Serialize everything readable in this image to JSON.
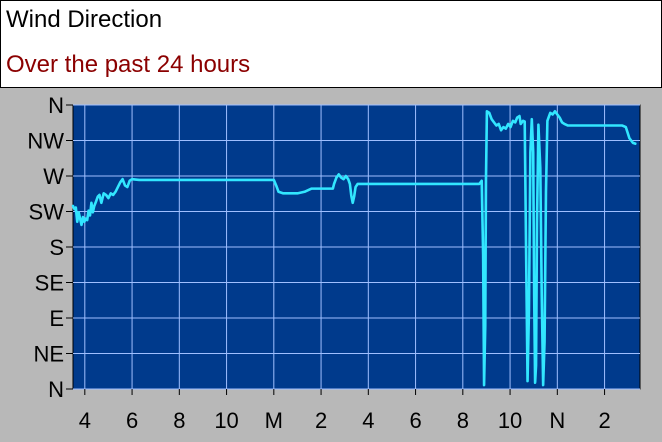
{
  "header": {
    "title": "Wind Direction",
    "subtitle": "Over the past 24 hours"
  },
  "colors": {
    "plot_background": "#003a8c",
    "panel_background": "#b8b8b8",
    "grid": "#9fbfff",
    "series": "#32e6ff",
    "title_text": "#000000",
    "subtitle_text": "#8b0000",
    "axis_text": "#000000"
  },
  "chart_data": {
    "type": "line",
    "title": "Wind Direction",
    "subtitle": "Over the past 24 hours",
    "xlabel": "",
    "ylabel": "",
    "xlim": [
      0,
      24
    ],
    "ylim": [
      0,
      360
    ],
    "x_ticks": [
      {
        "x": 0.5,
        "label": "4"
      },
      {
        "x": 2.5,
        "label": "6"
      },
      {
        "x": 4.5,
        "label": "8"
      },
      {
        "x": 6.5,
        "label": "10"
      },
      {
        "x": 8.5,
        "label": "M"
      },
      {
        "x": 10.5,
        "label": "2"
      },
      {
        "x": 12.5,
        "label": "4"
      },
      {
        "x": 14.5,
        "label": "6"
      },
      {
        "x": 16.5,
        "label": "8"
      },
      {
        "x": 18.5,
        "label": "10"
      },
      {
        "x": 20.5,
        "label": "N"
      },
      {
        "x": 22.5,
        "label": "2"
      }
    ],
    "y_ticks": [
      {
        "value": 360,
        "label": "N"
      },
      {
        "value": 315,
        "label": "NW"
      },
      {
        "value": 270,
        "label": "W"
      },
      {
        "value": 225,
        "label": "SW"
      },
      {
        "value": 180,
        "label": "S"
      },
      {
        "value": 135,
        "label": "SE"
      },
      {
        "value": 90,
        "label": "E"
      },
      {
        "value": 45,
        "label": "NE"
      },
      {
        "value": 0,
        "label": "N"
      }
    ],
    "grid": true,
    "series": [
      {
        "name": "",
        "points": [
          [
            0.0,
            232
          ],
          [
            0.06,
            228
          ],
          [
            0.12,
            230
          ],
          [
            0.18,
            212
          ],
          [
            0.24,
            224
          ],
          [
            0.3,
            216
          ],
          [
            0.36,
            208
          ],
          [
            0.42,
            218
          ],
          [
            0.48,
            212
          ],
          [
            0.54,
            216
          ],
          [
            0.6,
            214
          ],
          [
            0.66,
            226
          ],
          [
            0.72,
            220
          ],
          [
            0.78,
            236
          ],
          [
            0.84,
            224
          ],
          [
            0.9,
            232
          ],
          [
            0.98,
            238
          ],
          [
            1.05,
            244
          ],
          [
            1.12,
            246
          ],
          [
            1.2,
            236
          ],
          [
            1.3,
            248
          ],
          [
            1.4,
            246
          ],
          [
            1.5,
            242
          ],
          [
            1.6,
            248
          ],
          [
            1.7,
            246
          ],
          [
            1.8,
            250
          ],
          [
            1.9,
            256
          ],
          [
            2.0,
            262
          ],
          [
            2.1,
            266
          ],
          [
            2.2,
            258
          ],
          [
            2.3,
            256
          ],
          [
            2.4,
            264
          ],
          [
            2.5,
            266
          ],
          [
            2.8,
            265
          ],
          [
            3.2,
            265
          ],
          [
            3.8,
            265
          ],
          [
            4.5,
            265
          ],
          [
            5.5,
            265
          ],
          [
            6.5,
            265
          ],
          [
            7.5,
            265
          ],
          [
            8.5,
            265
          ],
          [
            8.6,
            258
          ],
          [
            8.7,
            250
          ],
          [
            8.9,
            248
          ],
          [
            9.2,
            248
          ],
          [
            9.5,
            248
          ],
          [
            9.8,
            250
          ],
          [
            10.1,
            254
          ],
          [
            10.4,
            254
          ],
          [
            10.7,
            254
          ],
          [
            11.0,
            254
          ],
          [
            11.05,
            260
          ],
          [
            11.15,
            268
          ],
          [
            11.25,
            272
          ],
          [
            11.35,
            268
          ],
          [
            11.45,
            266
          ],
          [
            11.55,
            270
          ],
          [
            11.65,
            266
          ],
          [
            11.72,
            260
          ],
          [
            11.78,
            245
          ],
          [
            11.84,
            236
          ],
          [
            11.9,
            244
          ],
          [
            11.96,
            256
          ],
          [
            12.05,
            260
          ],
          [
            12.3,
            260
          ],
          [
            12.8,
            260
          ],
          [
            13.5,
            260
          ],
          [
            14.5,
            260
          ],
          [
            15.5,
            260
          ],
          [
            16.5,
            260
          ],
          [
            17.2,
            260
          ],
          [
            17.3,
            264
          ],
          [
            17.36,
            170
          ],
          [
            17.4,
            5
          ],
          [
            17.45,
            80
          ],
          [
            17.48,
            265
          ],
          [
            17.52,
            352
          ],
          [
            17.62,
            350
          ],
          [
            17.72,
            342
          ],
          [
            17.82,
            338
          ],
          [
            17.92,
            334
          ],
          [
            18.02,
            336
          ],
          [
            18.12,
            328
          ],
          [
            18.22,
            332
          ],
          [
            18.32,
            330
          ],
          [
            18.42,
            336
          ],
          [
            18.52,
            332
          ],
          [
            18.62,
            340
          ],
          [
            18.72,
            338
          ],
          [
            18.8,
            344
          ],
          [
            18.9,
            346
          ],
          [
            18.95,
            336
          ],
          [
            19.0,
            338
          ],
          [
            19.05,
            340
          ],
          [
            19.12,
            339
          ],
          [
            19.18,
            170
          ],
          [
            19.24,
            10
          ],
          [
            19.3,
            100
          ],
          [
            19.36,
            300
          ],
          [
            19.42,
            342
          ],
          [
            19.48,
            300
          ],
          [
            19.52,
            120
          ],
          [
            19.56,
            8
          ],
          [
            19.6,
            30
          ],
          [
            19.64,
            210
          ],
          [
            19.7,
            335
          ],
          [
            19.78,
            280
          ],
          [
            19.84,
            120
          ],
          [
            19.9,
            5
          ],
          [
            19.96,
            60
          ],
          [
            20.02,
            250
          ],
          [
            20.08,
            340
          ],
          [
            20.14,
            345
          ],
          [
            20.2,
            350
          ],
          [
            20.3,
            348
          ],
          [
            20.4,
            352
          ],
          [
            20.5,
            348
          ],
          [
            20.6,
            344
          ],
          [
            20.7,
            338
          ],
          [
            20.8,
            336
          ],
          [
            20.95,
            334
          ],
          [
            21.2,
            334
          ],
          [
            21.5,
            334
          ],
          [
            21.8,
            334
          ],
          [
            22.1,
            334
          ],
          [
            22.4,
            334
          ],
          [
            22.7,
            334
          ],
          [
            23.0,
            334
          ],
          [
            23.25,
            334
          ],
          [
            23.4,
            332
          ],
          [
            23.55,
            318
          ],
          [
            23.7,
            312
          ],
          [
            23.8,
            311
          ]
        ]
      }
    ]
  }
}
